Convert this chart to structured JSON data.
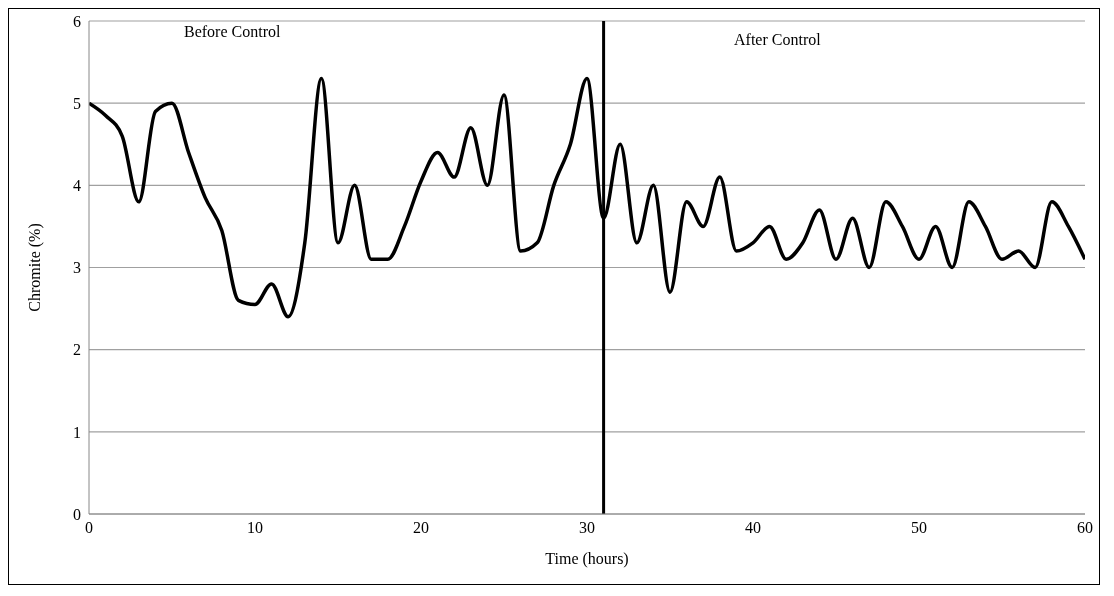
{
  "chart_data": {
    "type": "line",
    "xlabel": "Time (hours)",
    "ylabel": "Chromite (%)",
    "annotations": [
      "Before Control",
      "After Control"
    ],
    "x": [
      0,
      1,
      2,
      3,
      4,
      5,
      6,
      7,
      8,
      9,
      10,
      11,
      12,
      13,
      14,
      15,
      16,
      17,
      18,
      19,
      20,
      21,
      22,
      23,
      24,
      25,
      26,
      27,
      28,
      29,
      30,
      31,
      32,
      33,
      34,
      35,
      36,
      37,
      38,
      39,
      40,
      41,
      42,
      43,
      44,
      45,
      46,
      47,
      48,
      49,
      50,
      51,
      52,
      53,
      54,
      55,
      56,
      57,
      58,
      59,
      60
    ],
    "series": [
      {
        "color": "#000000",
        "values": [
          5.0,
          4.85,
          4.6,
          3.8,
          4.9,
          5.0,
          4.4,
          3.85,
          3.45,
          2.6,
          2.55,
          2.8,
          2.4,
          3.3,
          5.3,
          3.3,
          4.0,
          3.1,
          3.1,
          3.5,
          4.05,
          4.4,
          4.1,
          4.7,
          4.0,
          5.1,
          3.2,
          3.3,
          4.0,
          4.5,
          5.3,
          3.6,
          4.5,
          3.3,
          4.0,
          2.7,
          3.8,
          3.5,
          4.1,
          3.2,
          3.3,
          3.5,
          3.1,
          3.3,
          3.7,
          3.1,
          3.6,
          3.0,
          3.8,
          3.5,
          3.1,
          3.5,
          3.0,
          3.8,
          3.5,
          3.1,
          3.2,
          3.0,
          3.8,
          3.5,
          3.1
        ]
      }
    ],
    "xlim": [
      0,
      60
    ],
    "xticks": [
      0,
      10,
      20,
      30,
      40,
      50,
      60
    ],
    "ylim": [
      0,
      6
    ],
    "yticks": [
      0,
      1,
      2,
      3,
      4,
      5,
      6
    ],
    "grid": "y",
    "marker": "none",
    "line_style": "solid",
    "ref_lines": [
      {
        "axis": "x",
        "value": 31,
        "color": "#000000"
      }
    ]
  }
}
